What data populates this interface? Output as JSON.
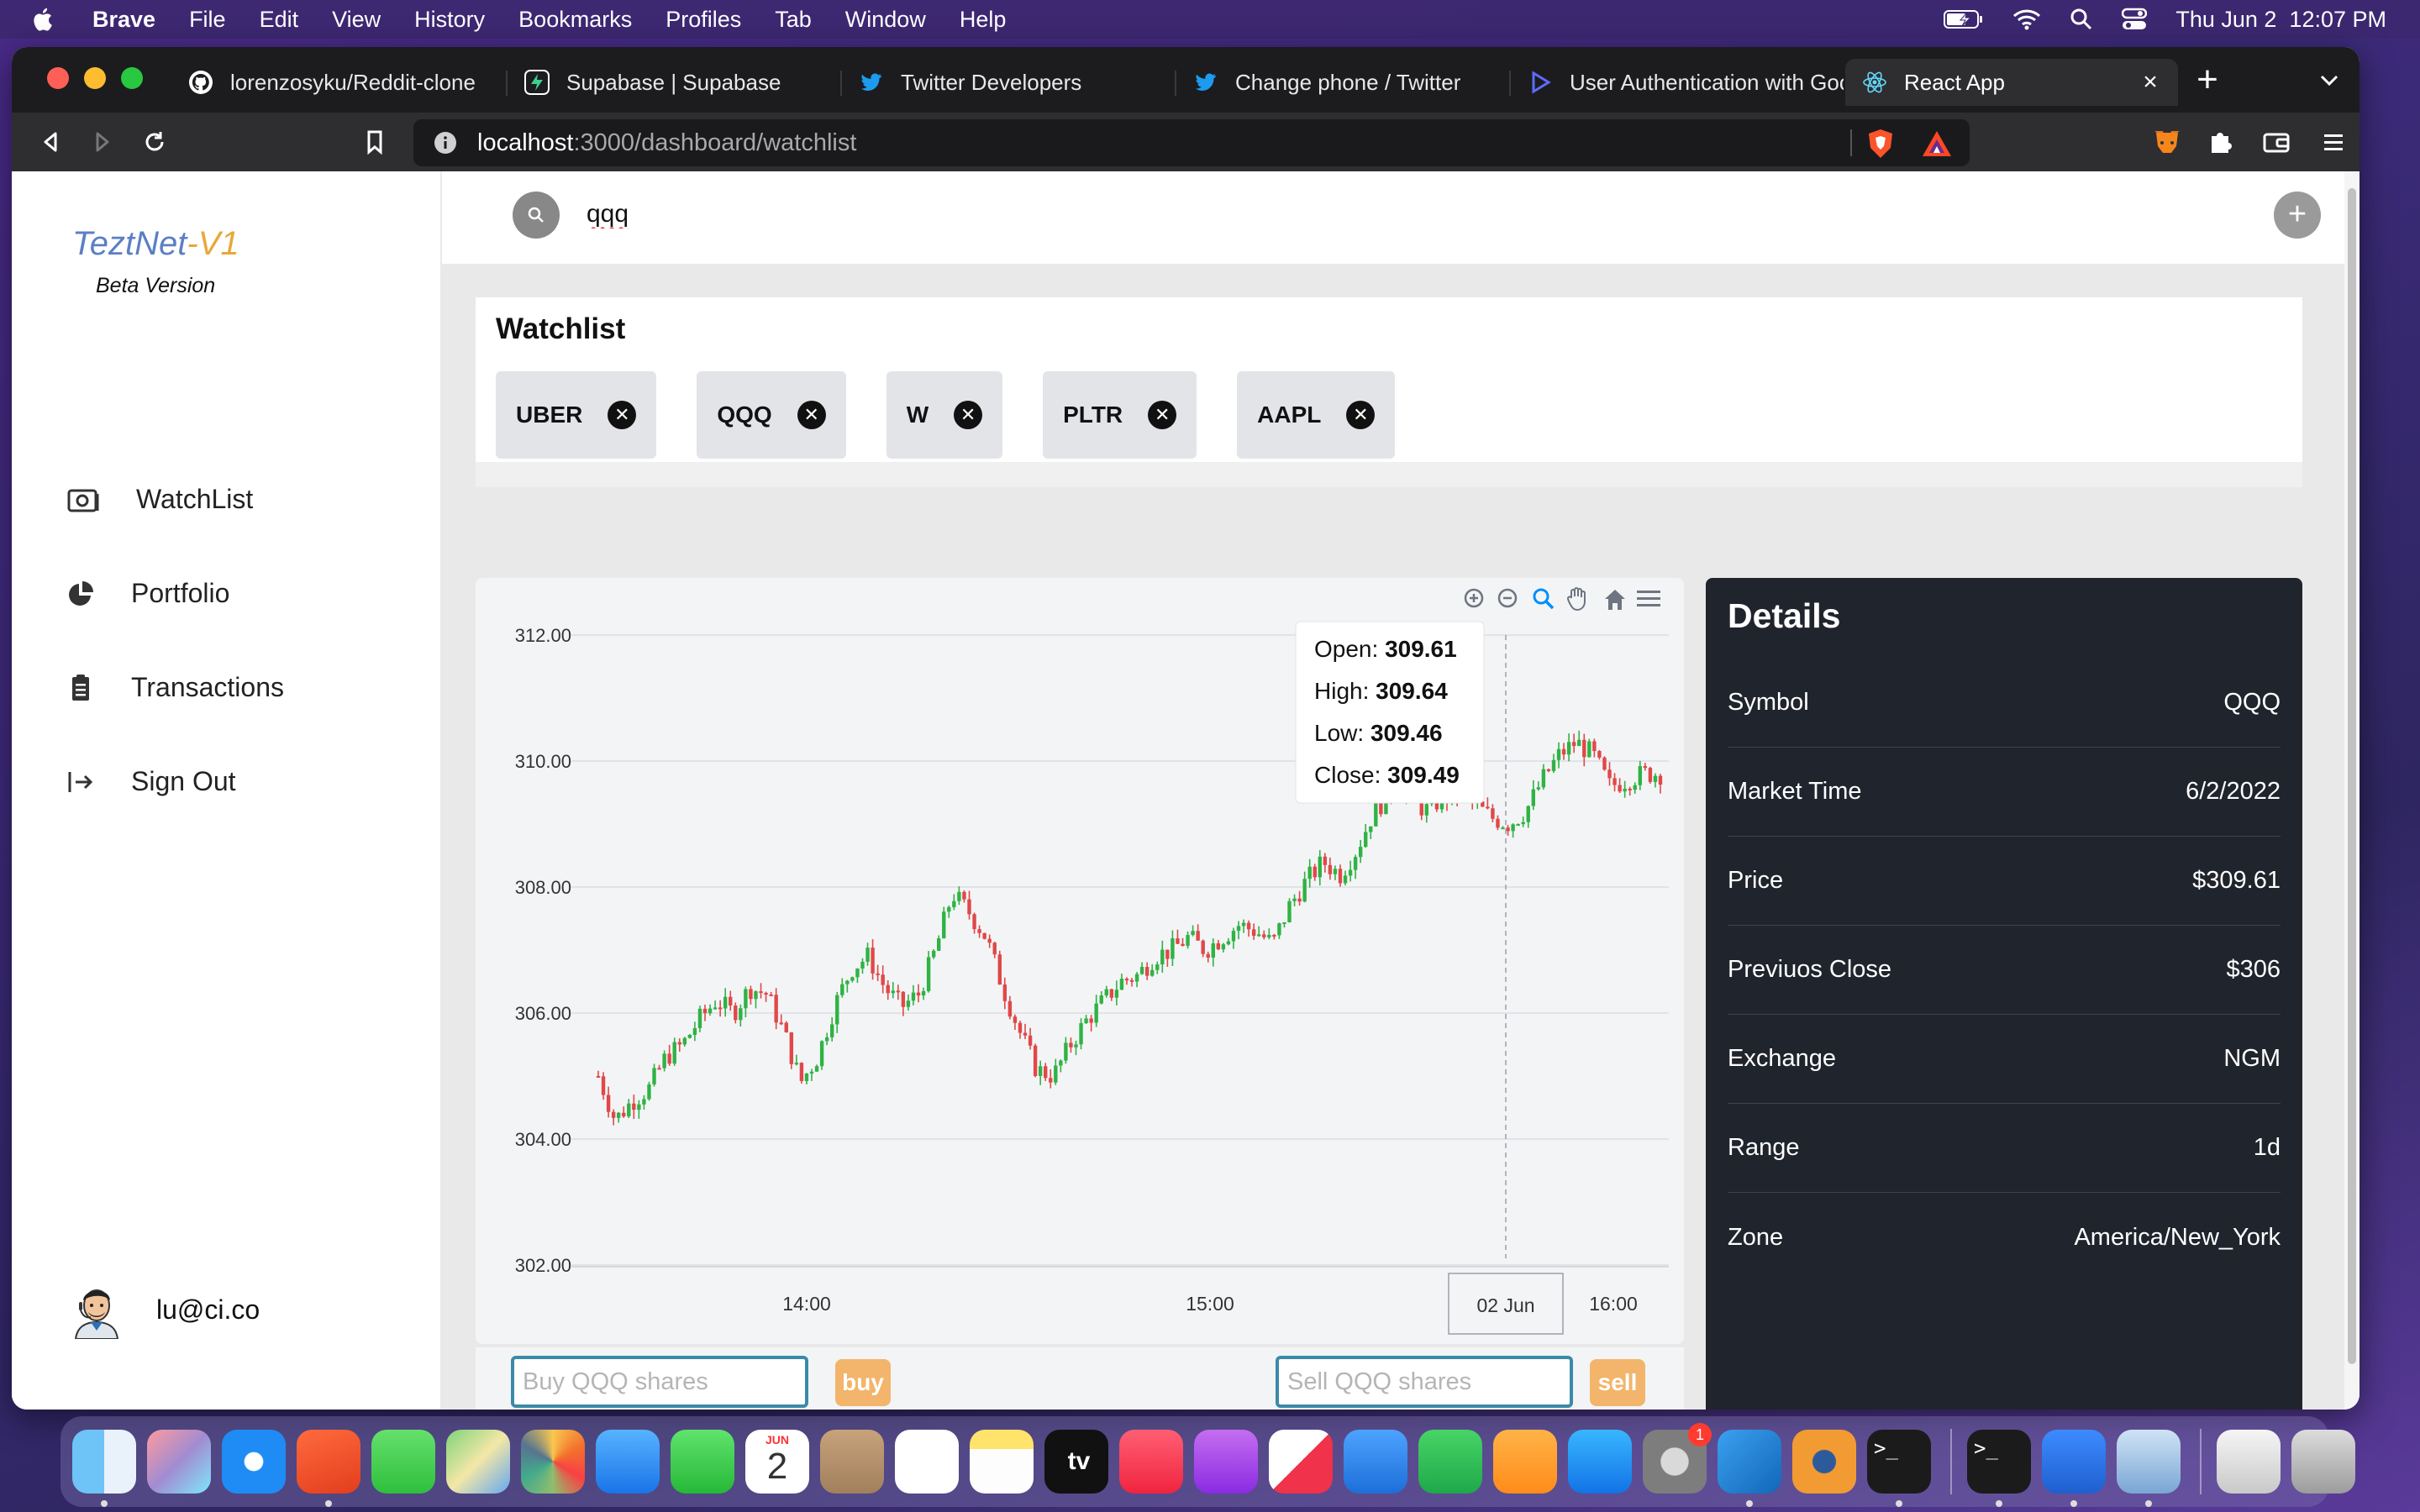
{
  "menubar": {
    "app": "Brave",
    "items": [
      "File",
      "Edit",
      "View",
      "History",
      "Bookmarks",
      "Profiles",
      "Tab",
      "Window",
      "Help"
    ],
    "datetime": "Thu Jun 2  12:07 PM"
  },
  "browser": {
    "tabs": [
      {
        "title": "lorenzosyku/Reddit-clone",
        "icon": "github-icon"
      },
      {
        "title": "Supabase | Supabase",
        "icon": "supabase-icon"
      },
      {
        "title": "Twitter Developers",
        "icon": "twitter-icon"
      },
      {
        "title": "Change phone / Twitter",
        "icon": "twitter-icon"
      },
      {
        "title": "User Authentication with Goo",
        "icon": "play-icon"
      },
      {
        "title": "React App",
        "icon": "react-icon"
      }
    ],
    "url_host": "localhost",
    "url_path": ":3000/dashboard/watchlist"
  },
  "sidebar": {
    "logo_a": "TeztNet",
    "logo_b": "-V1",
    "beta": "Beta Version",
    "items": [
      {
        "label": "WatchList",
        "icon": "camera-icon"
      },
      {
        "label": "Portfolio",
        "icon": "pie-chart-icon"
      },
      {
        "label": "Transactions",
        "icon": "clipboard-icon"
      },
      {
        "label": "Sign Out",
        "icon": "sign-out-icon"
      }
    ],
    "user": "lu@ci.co"
  },
  "search": {
    "value": "qqq"
  },
  "watchlist": {
    "title": "Watchlist",
    "chips": [
      "UBER",
      "QQQ",
      "W",
      "PLTR",
      "AAPL"
    ]
  },
  "chart_data": {
    "type": "candlestick",
    "symbol": "QQQ",
    "ylim": [
      302,
      312
    ],
    "yticks": [
      "312.00",
      "310.00",
      "308.00",
      "306.00",
      "304.00",
      "302.00"
    ],
    "xticks": [
      "14:00",
      "15:00",
      "02 Jun",
      "16:00"
    ],
    "tooltip": {
      "open_label": "Open:",
      "open": "309.61",
      "high_label": "High:",
      "high": "309.64",
      "low_label": "Low:",
      "low": "309.46",
      "close_label": "Close:",
      "close": "309.49"
    },
    "colors": {
      "up": "#2fb344",
      "down": "#e04848"
    },
    "trend": [
      305.0,
      304.3,
      304.6,
      304.8,
      305.3,
      305.5,
      305.9,
      306.2,
      306.0,
      306.4,
      306.3,
      305.7,
      304.9,
      305.3,
      306.1,
      306.7,
      306.9,
      306.4,
      306.1,
      306.3,
      307.0,
      307.9,
      307.6,
      307.2,
      306.4,
      305.7,
      305.1,
      305.0,
      305.5,
      305.9,
      306.2,
      306.5,
      306.6,
      306.9,
      307.0,
      307.2,
      307.0,
      307.2,
      307.4,
      307.3,
      307.1,
      307.7,
      308.1,
      308.4,
      308.2,
      308.6,
      309.2,
      309.5,
      309.6,
      309.2,
      309.4,
      309.5,
      309.3,
      309.1,
      309.0,
      309.2,
      309.7,
      310.1,
      310.3,
      310.1,
      309.6,
      309.7,
      309.8,
      309.8
    ]
  },
  "chart_toolbar": [
    "zoom-in-icon",
    "zoom-out-icon",
    "zoom-icon",
    "pan-icon",
    "home-icon",
    "menu-icon"
  ],
  "details": {
    "title": "Details",
    "rows": [
      {
        "label": "Symbol",
        "value": "QQQ"
      },
      {
        "label": "Market Time",
        "value": "6/2/2022"
      },
      {
        "label": "Price",
        "value": "$309.61"
      },
      {
        "label": "Previuos Close",
        "value": "$306"
      },
      {
        "label": "Exchange",
        "value": "NGM"
      },
      {
        "label": "Range",
        "value": "1d"
      },
      {
        "label": "Zone",
        "value": "America/New_York"
      }
    ]
  },
  "trade": {
    "buy_placeholder": "Buy QQQ shares",
    "buy_label": "buy",
    "sell_placeholder": "Sell QQQ shares",
    "sell_label": "sell"
  },
  "dock": {
    "calendar_month": "JUN",
    "calendar_day": "2",
    "settings_badge": "1",
    "apps": [
      "finder-icon",
      "launchpad-icon",
      "safari-icon",
      "brave-icon",
      "messages-icon",
      "maps-icon",
      "photos-icon",
      "mail-icon",
      "facetime-icon",
      "calendar-icon",
      "contacts-icon",
      "reminders-icon",
      "notes-icon",
      "tv-icon",
      "music-icon",
      "podcasts-icon",
      "news-icon",
      "keynote-icon",
      "numbers-icon",
      "pages-icon",
      "appstore-icon",
      "settings-icon",
      "vscode-icon",
      "blender-icon",
      "terminal-icon",
      "terminal2-icon",
      "bluetooth-icon",
      "preview-icon",
      "doc-icon",
      "trash-icon"
    ]
  }
}
